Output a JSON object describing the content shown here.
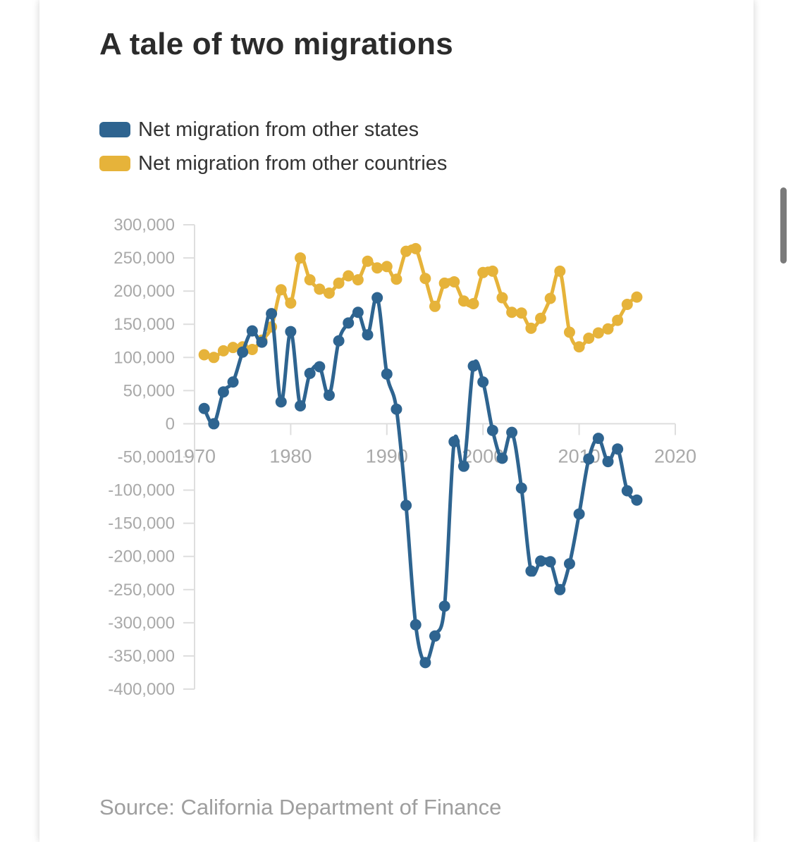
{
  "page": {
    "title": "A tale of two migrations",
    "source": "Source: California Department of Finance"
  },
  "colors": {
    "states": "#2e6490",
    "countries": "#e6b33a",
    "axis": "#dedede",
    "tick_text": "#a9a9a9"
  },
  "chart_data": {
    "type": "line",
    "title": "A tale of two migrations",
    "xlabel": "",
    "ylabel": "",
    "xlim": [
      1970,
      2020
    ],
    "ylim": [
      -400000,
      300000
    ],
    "x_ticks": [
      "1970",
      "1980",
      "1990",
      "2000",
      "2010",
      "2020"
    ],
    "y_ticks": [
      "300,000",
      "250,000",
      "200,000",
      "150,000",
      "100,000",
      "50,000",
      "0",
      "-50,000",
      "-100,000",
      "-150,000",
      "-200,000",
      "-250,000",
      "-300,000",
      "-350,000",
      "-400,000"
    ],
    "grid": false,
    "legend_position": "top-left",
    "x": [
      1971,
      1972,
      1973,
      1974,
      1975,
      1976,
      1977,
      1978,
      1979,
      1980,
      1981,
      1982,
      1983,
      1984,
      1985,
      1986,
      1987,
      1988,
      1989,
      1990,
      1991,
      1992,
      1993,
      1994,
      1995,
      1996,
      1997,
      1998,
      1999,
      2000,
      2001,
      2002,
      2003,
      2004,
      2005,
      2006,
      2007,
      2008,
      2009,
      2010,
      2011,
      2012,
      2013,
      2014,
      2015,
      2016
    ],
    "series": [
      {
        "name": "Net migration from other states",
        "color": "#2e6490",
        "values": [
          23000,
          0,
          48000,
          63000,
          108000,
          140000,
          123000,
          166000,
          33000,
          139000,
          27000,
          76000,
          86000,
          43000,
          125000,
          152000,
          168000,
          134000,
          190000,
          75000,
          22000,
          -123000,
          -303000,
          -360000,
          -320000,
          -275000,
          -27000,
          -64000,
          87000,
          63000,
          -10000,
          -52000,
          -13000,
          -97000,
          -222000,
          -207000,
          -208000,
          -250000,
          -211000,
          -136000,
          -53000,
          -22000,
          -57000,
          -38000,
          -101000,
          -115000
        ]
      },
      {
        "name": "Net migration from other countries",
        "color": "#e6b33a",
        "values": [
          104000,
          100000,
          110000,
          115000,
          116000,
          112000,
          126000,
          146000,
          202000,
          182000,
          250000,
          217000,
          203000,
          197000,
          212000,
          223000,
          217000,
          245000,
          235000,
          237000,
          218000,
          260000,
          264000,
          219000,
          177000,
          212000,
          214000,
          185000,
          181000,
          228000,
          230000,
          190000,
          168000,
          167000,
          144000,
          159000,
          189000,
          230000,
          138000,
          116000,
          129000,
          137000,
          143000,
          156000,
          180000,
          191000
        ]
      }
    ]
  }
}
